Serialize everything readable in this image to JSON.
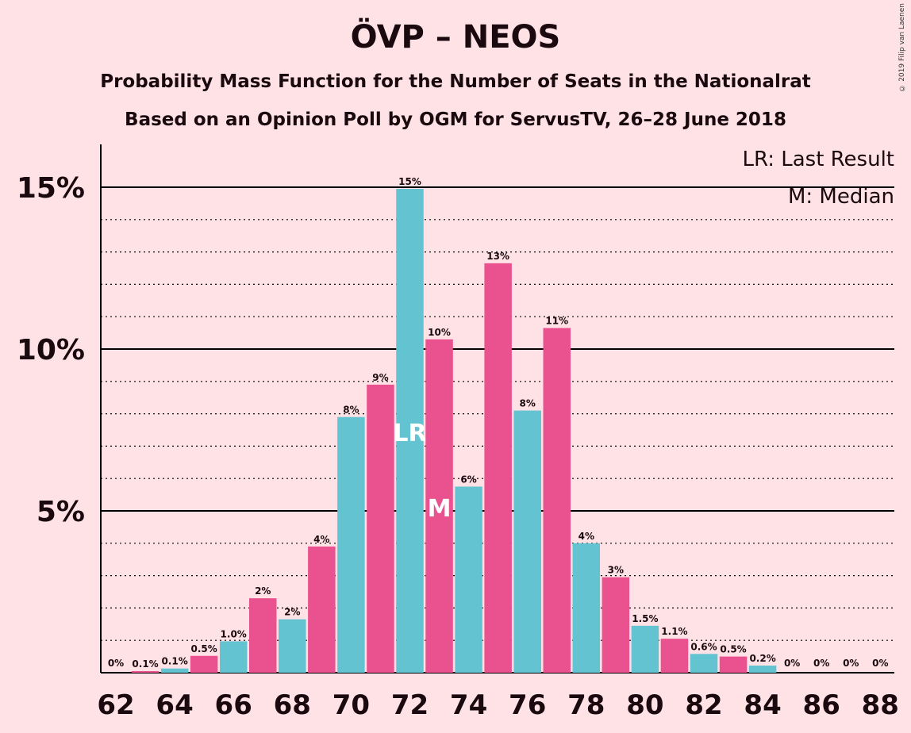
{
  "title": "ÖVP – NEOS",
  "subtitle1": "Probability Mass Function for the Number of Seats in the Nationalrat",
  "subtitle2": "Based on an Opinion Poll by OGM for ServusTV, 26–28 June 2018",
  "copyright": "© 2019 Filip van Laenen",
  "legend": {
    "lr": "LR: Last Result",
    "median": "M: Median"
  },
  "colors": {
    "teal": "#63c3d1",
    "pink": "#e9528f",
    "background": "#ffe2e6"
  },
  "chart_data": {
    "type": "bar",
    "xlabel": "",
    "ylabel": "",
    "ylim": [
      0,
      16.3
    ],
    "y_ticks": [
      {
        "value": 5,
        "label": "5%"
      },
      {
        "value": 10,
        "label": "10%"
      },
      {
        "value": 15,
        "label": "15%"
      }
    ],
    "x_tick_labels": [
      "62",
      "64",
      "66",
      "68",
      "70",
      "72",
      "74",
      "76",
      "78",
      "80",
      "82",
      "84",
      "86",
      "88"
    ],
    "categories": [
      62,
      63,
      64,
      65,
      66,
      67,
      68,
      69,
      70,
      71,
      72,
      73,
      74,
      75,
      76,
      77,
      78,
      79,
      80,
      81,
      82,
      83,
      84,
      85,
      86,
      87,
      88
    ],
    "values": [
      0,
      0.05,
      0.13,
      0.52,
      0.97,
      2.3,
      1.65,
      3.9,
      7.9,
      8.9,
      14.95,
      10.3,
      5.75,
      12.65,
      8.1,
      10.65,
      4.0,
      2.95,
      1.45,
      1.05,
      0.58,
      0.5,
      0.22,
      0,
      0,
      0,
      0
    ],
    "labels": [
      "0%",
      "0.1%",
      "0.1%",
      "0.5%",
      "1.0%",
      "2%",
      "2%",
      "4%",
      "8%",
      "9%",
      "15%",
      "10%",
      "6%",
      "13%",
      "8%",
      "11%",
      "4%",
      "3%",
      "1.5%",
      "1.1%",
      "0.6%",
      "0.5%",
      "0.2%",
      "0%",
      "0%",
      "0%",
      "0%"
    ],
    "last_result": {
      "seat": 72,
      "label": "LR"
    },
    "median": {
      "seat": 73,
      "label": "M"
    },
    "grid": "dotted every 1%, solid every 5%"
  }
}
